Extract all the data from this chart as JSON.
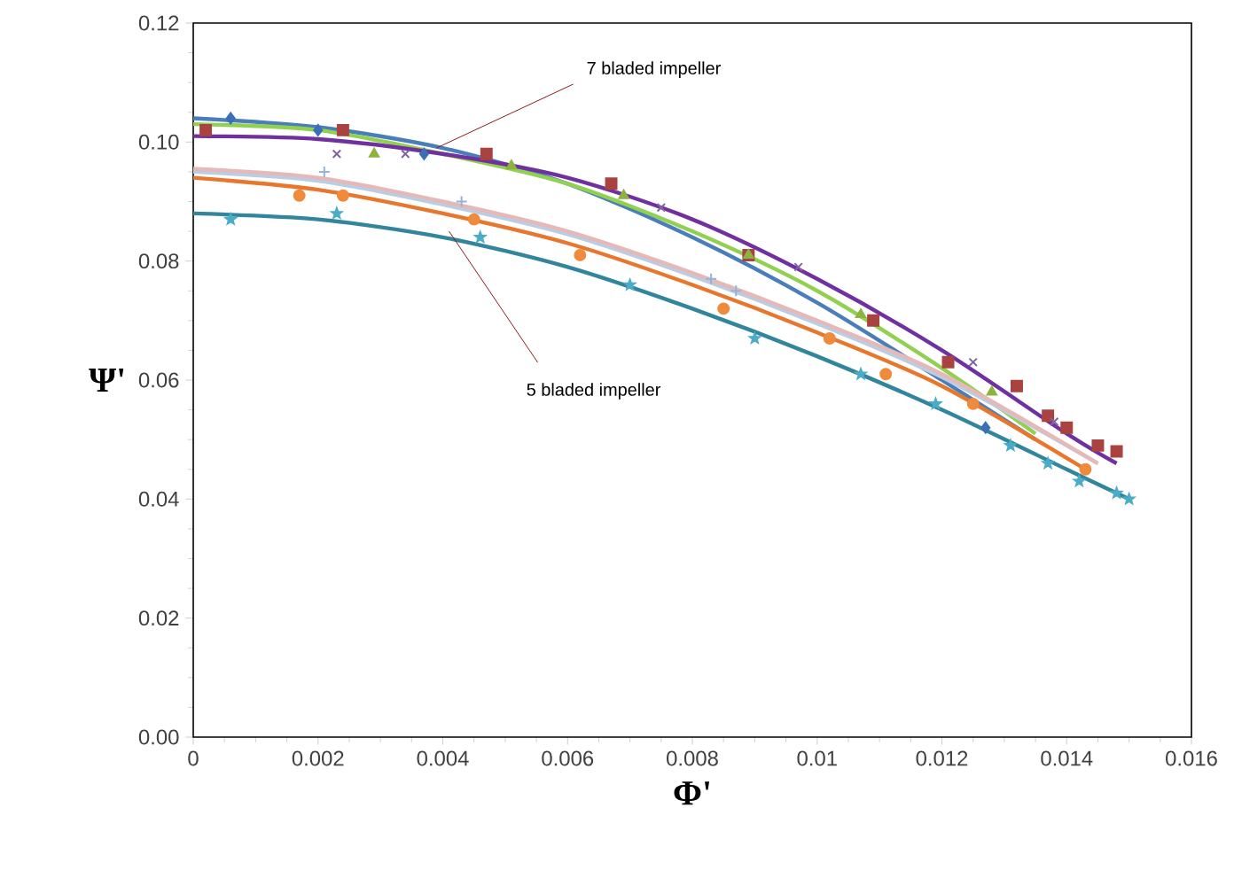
{
  "chart_data": {
    "type": "scatter",
    "xlabel": "Φ'",
    "ylabel": "Ψ'",
    "xlim": [
      0,
      0.016
    ],
    "ylim": [
      0,
      0.12
    ],
    "xticks": [
      0,
      0.002,
      0.004,
      0.006,
      0.008,
      0.01,
      0.012,
      0.014,
      0.016
    ],
    "yticks": [
      {
        "value": 0,
        "label": "0.00"
      },
      {
        "value": 0.02,
        "label": "0.02"
      },
      {
        "value": 0.04,
        "label": "0.04"
      },
      {
        "value": 0.06,
        "label": "0.06"
      },
      {
        "value": 0.08,
        "label": "0.08"
      },
      {
        "value": 0.1,
        "label": "0.10"
      },
      {
        "value": 0.12,
        "label": "0.12"
      }
    ],
    "annotations": [
      {
        "text": "7 bladed impeller",
        "x": 0.0039,
        "y": 0.099
      },
      {
        "text": "5 bladed impeller",
        "x": 0.0041,
        "y": 0.085
      }
    ],
    "series": [
      {
        "type": "line",
        "color": "#4a7ebb",
        "x": [
          0,
          0.002,
          0.004,
          0.006,
          0.008,
          0.01,
          0.012,
          0.0135
        ],
        "values": [
          0.104,
          0.1025,
          0.099,
          0.093,
          0.084,
          0.073,
          0.06,
          0.05
        ]
      },
      {
        "type": "line",
        "color": "#92d050",
        "x": [
          0,
          0.002,
          0.004,
          0.006,
          0.008,
          0.01,
          0.012,
          0.0135
        ],
        "values": [
          0.103,
          0.102,
          0.098,
          0.093,
          0.085,
          0.075,
          0.062,
          0.051
        ]
      },
      {
        "type": "line",
        "color": "#7030a0",
        "x": [
          0,
          0.002,
          0.004,
          0.006,
          0.008,
          0.01,
          0.012,
          0.014,
          0.0148
        ],
        "values": [
          0.101,
          0.1005,
          0.098,
          0.094,
          0.087,
          0.077,
          0.065,
          0.051,
          0.046
        ]
      },
      {
        "type": "line",
        "color": "#b9cde5",
        "x": [
          0,
          0.002,
          0.004,
          0.006,
          0.008,
          0.01,
          0.012,
          0.0145
        ],
        "values": [
          0.095,
          0.0935,
          0.0895,
          0.0845,
          0.0775,
          0.0695,
          0.0605,
          0.046
        ]
      },
      {
        "type": "line",
        "color": "#e6b9b8",
        "x": [
          0,
          0.002,
          0.004,
          0.006,
          0.008,
          0.01,
          0.012,
          0.0145
        ],
        "values": [
          0.0955,
          0.094,
          0.09,
          0.085,
          0.078,
          0.07,
          0.061,
          0.046
        ]
      },
      {
        "type": "line",
        "color": "#e8762c",
        "x": [
          0,
          0.002,
          0.004,
          0.006,
          0.008,
          0.01,
          0.012,
          0.0143
        ],
        "values": [
          0.094,
          0.092,
          0.088,
          0.083,
          0.076,
          0.068,
          0.059,
          0.045
        ]
      },
      {
        "type": "line",
        "color": "#31859c",
        "x": [
          0,
          0.002,
          0.004,
          0.006,
          0.008,
          0.01,
          0.012,
          0.014,
          0.015
        ],
        "values": [
          0.088,
          0.087,
          0.084,
          0.079,
          0.072,
          0.064,
          0.055,
          0.045,
          0.04
        ]
      },
      {
        "marker": "diamond",
        "color": "#3b6fb6",
        "x": [
          0.0006,
          0.002,
          0.0037,
          0.0127
        ],
        "values": [
          0.104,
          0.102,
          0.098,
          0.052
        ]
      },
      {
        "marker": "square",
        "color": "#a9433f",
        "x": [
          0.0002,
          0.0024,
          0.0047,
          0.0067,
          0.0089,
          0.0109,
          0.0121,
          0.0132,
          0.0137,
          0.014,
          0.0145,
          0.0148
        ],
        "values": [
          0.102,
          0.102,
          0.098,
          0.093,
          0.081,
          0.07,
          0.063,
          0.059,
          0.054,
          0.052,
          0.049,
          0.048
        ]
      },
      {
        "marker": "triangle",
        "color": "#8cb33f",
        "x": [
          0.0029,
          0.0051,
          0.0069,
          0.0089,
          0.0107,
          0.0128
        ],
        "values": [
          0.098,
          0.096,
          0.091,
          0.081,
          0.071,
          0.058
        ]
      },
      {
        "marker": "cross",
        "color": "#8064a2",
        "x": [
          0.0023,
          0.0034,
          0.0075,
          0.0097,
          0.0125,
          0.0138
        ],
        "values": [
          0.098,
          0.098,
          0.089,
          0.079,
          0.063,
          0.053
        ]
      },
      {
        "marker": "plus",
        "color": "#95b3d7",
        "x": [
          0.0021,
          0.0043,
          0.0083,
          0.0087
        ],
        "values": [
          0.095,
          0.09,
          0.077,
          0.075
        ]
      },
      {
        "marker": "circle",
        "color": "#f08a3c",
        "x": [
          0.0017,
          0.0024,
          0.0045,
          0.0062,
          0.0085,
          0.0102,
          0.0111,
          0.0125,
          0.0143
        ],
        "values": [
          0.091,
          0.091,
          0.087,
          0.081,
          0.072,
          0.067,
          0.061,
          0.056,
          0.045
        ]
      },
      {
        "marker": "star",
        "color": "#4bacc6",
        "x": [
          0.0006,
          0.0023,
          0.0046,
          0.007,
          0.009,
          0.0107,
          0.0119,
          0.0131,
          0.0137,
          0.0142,
          0.0148,
          0.015
        ],
        "values": [
          0.087,
          0.088,
          0.084,
          0.076,
          0.067,
          0.061,
          0.056,
          0.049,
          0.046,
          0.043,
          0.041,
          0.04
        ]
      }
    ]
  }
}
